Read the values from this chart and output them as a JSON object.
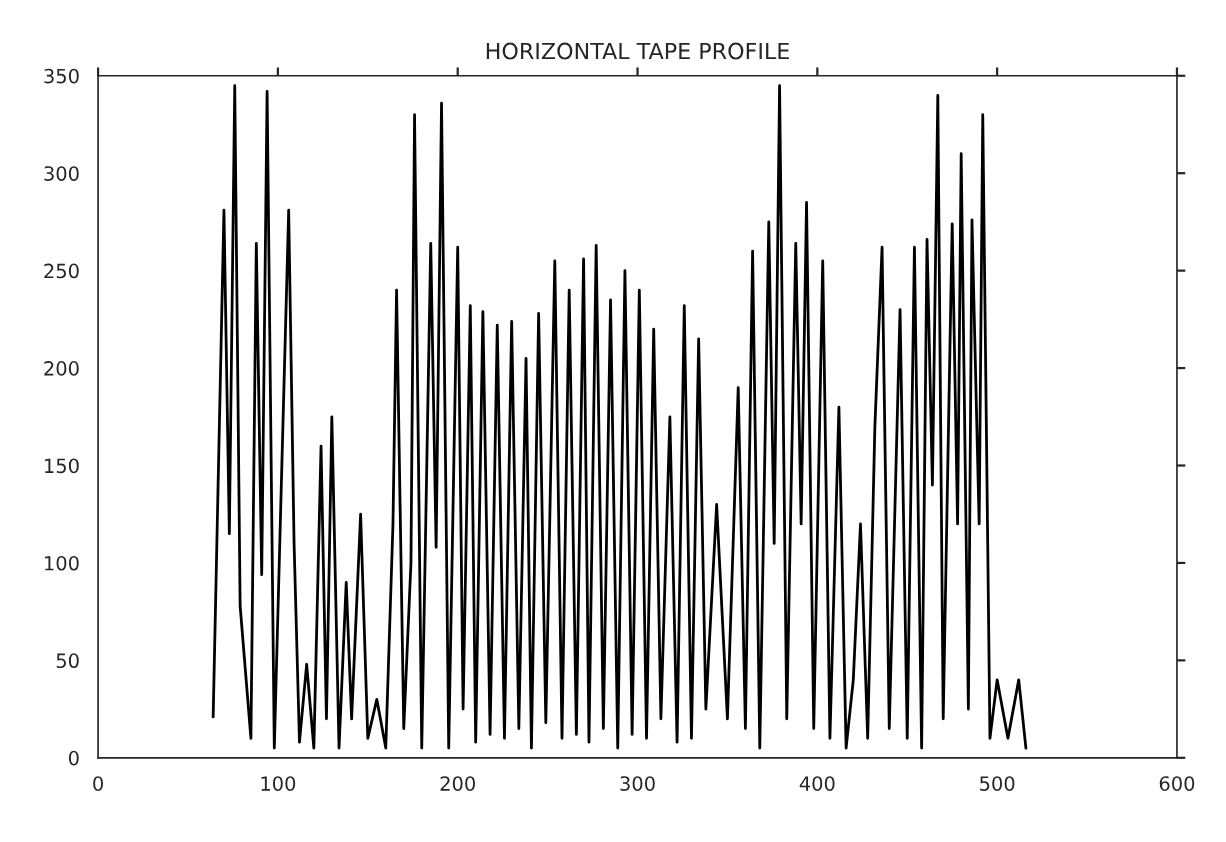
{
  "chart_data": {
    "type": "line",
    "title": "HORIZONTAL TAPE PROFILE",
    "x": [
      64,
      70,
      73,
      76,
      79,
      85,
      88,
      91,
      94,
      98,
      106,
      109,
      112,
      116,
      120,
      124,
      127,
      130,
      134,
      138,
      141,
      146,
      150,
      155,
      160,
      164,
      166,
      170,
      174,
      176,
      180,
      185,
      188,
      191,
      195,
      200,
      203,
      207,
      210,
      214,
      218,
      222,
      226,
      230,
      234,
      238,
      241,
      245,
      249,
      254,
      258,
      262,
      266,
      270,
      273,
      277,
      281,
      285,
      289,
      293,
      297,
      301,
      305,
      309,
      313,
      318,
      322,
      326,
      330,
      334,
      338,
      344,
      350,
      356,
      360,
      364,
      368,
      373,
      376,
      379,
      383,
      388,
      391,
      394,
      398,
      403,
      407,
      412,
      416,
      420,
      424,
      428,
      432,
      436,
      440,
      446,
      450,
      454,
      458,
      461,
      464,
      467,
      470,
      475,
      478,
      480,
      484,
      486,
      490,
      492,
      496,
      500,
      506,
      512,
      516
    ],
    "series": [
      {
        "color": "#000000",
        "values": [
          21,
          281,
          115,
          345,
          78,
          10,
          264,
          94,
          342,
          5,
          281,
          110,
          8,
          48,
          5,
          160,
          20,
          175,
          5,
          90,
          20,
          125,
          10,
          30,
          5,
          120,
          240,
          15,
          100,
          330,
          5,
          264,
          108,
          336,
          5,
          262,
          25,
          232,
          8,
          229,
          12,
          222,
          10,
          224,
          15,
          205,
          5,
          228,
          18,
          255,
          10,
          240,
          12,
          256,
          8,
          263,
          15,
          235,
          5,
          250,
          12,
          240,
          10,
          220,
          20,
          175,
          8,
          232,
          10,
          215,
          25,
          130,
          20,
          190,
          15,
          260,
          5,
          275,
          110,
          345,
          20,
          264,
          120,
          285,
          15,
          255,
          10,
          180,
          5,
          40,
          120,
          10,
          170,
          262,
          15,
          230,
          10,
          262,
          5,
          266,
          140,
          340,
          20,
          274,
          120,
          310,
          25,
          276,
          120,
          330,
          10,
          40,
          10,
          40,
          5
        ]
      }
    ],
    "xlim": [
      0,
      600
    ],
    "xticks": [
      0,
      100,
      200,
      300,
      400,
      500,
      600
    ],
    "ylim": [
      0,
      350
    ],
    "yticks": [
      0,
      50,
      100,
      150,
      200,
      250,
      300,
      350
    ],
    "grid": false,
    "marker": "none",
    "line_style": "solid",
    "legend": false
  }
}
